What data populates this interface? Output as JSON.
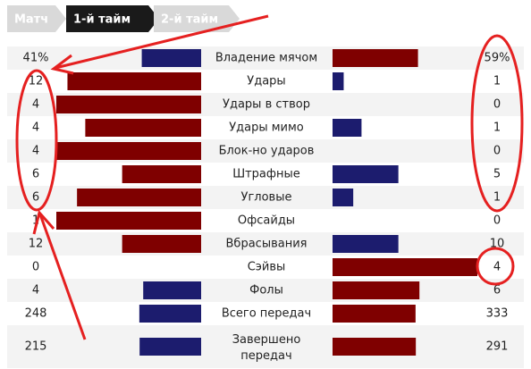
{
  "tabs": [
    {
      "label": "Матч",
      "active": false
    },
    {
      "label": "1-й тайм",
      "active": true
    },
    {
      "label": "2-й тайм",
      "active": false
    }
  ],
  "rows": [
    {
      "home": 41,
      "home_label": "41%",
      "label": "Владение мячом",
      "away": 59,
      "away_label": "59%"
    },
    {
      "home": 12,
      "label": "Удары",
      "away": 1
    },
    {
      "home": 4,
      "label": "Удары в створ",
      "away": 0
    },
    {
      "home": 4,
      "label": "Удары мимо",
      "away": 1
    },
    {
      "home": 4,
      "label": "Блок-но ударов",
      "away": 0
    },
    {
      "home": 6,
      "label": "Штрафные",
      "away": 5
    },
    {
      "home": 6,
      "label": "Угловые",
      "away": 1
    },
    {
      "home": 1,
      "label": "Офсайды",
      "away": 0
    },
    {
      "home": 12,
      "label": "Вбрасывания",
      "away": 10
    },
    {
      "home": 0,
      "label": "Сэйвы",
      "away": 4
    },
    {
      "home": 4,
      "label": "Фолы",
      "away": 6
    },
    {
      "home": 248,
      "label": "Всего передач",
      "away": 333
    },
    {
      "home": 215,
      "label": "Завершено передач",
      "away": 291
    }
  ]
}
